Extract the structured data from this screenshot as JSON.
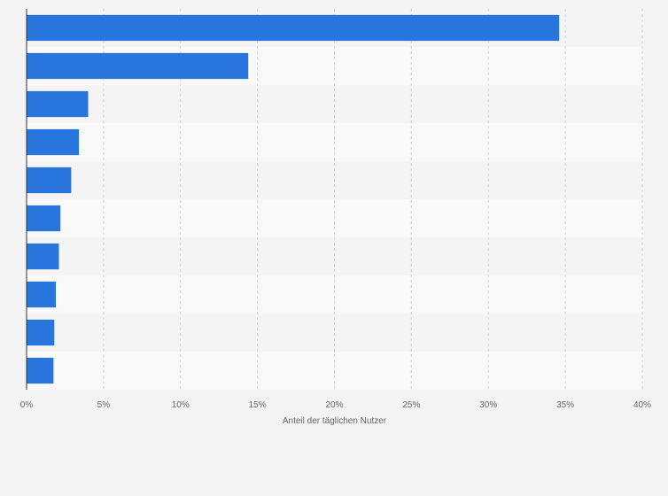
{
  "chart_data": {
    "type": "bar",
    "orientation": "horizontal",
    "title": "",
    "xlabel": "Anteil der täglichen Nutzer",
    "ylabel": "",
    "categories": [
      "",
      "",
      "",
      "",
      "",
      "",
      "",
      "",
      "",
      ""
    ],
    "values": [
      34.6,
      14.4,
      4.0,
      3.4,
      2.9,
      2.2,
      2.1,
      1.9,
      1.8,
      1.75
    ],
    "xlim": [
      0,
      40
    ],
    "xticks": [
      0,
      5,
      10,
      15,
      20,
      25,
      30,
      35,
      40
    ],
    "xtick_labels": [
      "0%",
      "5%",
      "10%",
      "15%",
      "20%",
      "25%",
      "30%",
      "35%",
      "40%"
    ],
    "grid": "vertical dashed",
    "legend": "none",
    "colors": {
      "bar": "#2876dd",
      "background": "#f4f4f4",
      "band_light": "#f9f9f9",
      "band_dark": "#f4f4f4",
      "grid": "#d2d2d2",
      "axis": "#333333",
      "text": "#666666"
    }
  }
}
